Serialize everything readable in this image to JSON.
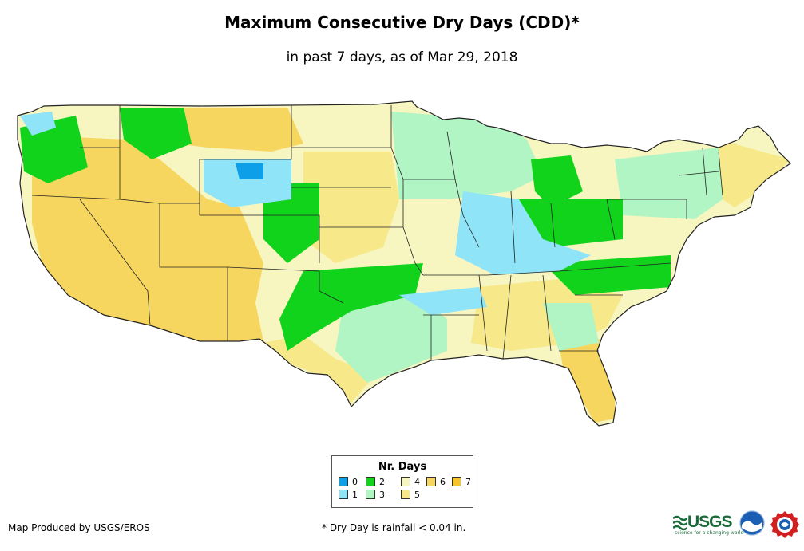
{
  "title": "Maximum Consecutive Dry Days (CDD)*",
  "subtitle": "in past 7 days, as of Mar 29, 2018",
  "legend": {
    "title": "Nr. Days",
    "items": [
      {
        "label": "0",
        "color": "#0d9fe8"
      },
      {
        "label": "1",
        "color": "#8fe4f8"
      },
      {
        "label": "2",
        "color": "#12d31c"
      },
      {
        "label": "3",
        "color": "#b2f5c4"
      },
      {
        "label": "4",
        "color": "#f7f5c0"
      },
      {
        "label": "5",
        "color": "#f7e88a"
      },
      {
        "label": "6",
        "color": "#f7d65f"
      },
      {
        "label": "7",
        "color": "#f5c52a"
      }
    ]
  },
  "footer": {
    "credit": "Map Produced by USGS/EROS",
    "note": "* Dry Day is rainfall < 0.04 in."
  },
  "logos": {
    "usgs": "USGS",
    "usgs_tagline": "science for a changing world"
  },
  "icons": [
    "usgs-logo-icon",
    "noaa-logo-icon",
    "nws-logo-icon"
  ]
}
